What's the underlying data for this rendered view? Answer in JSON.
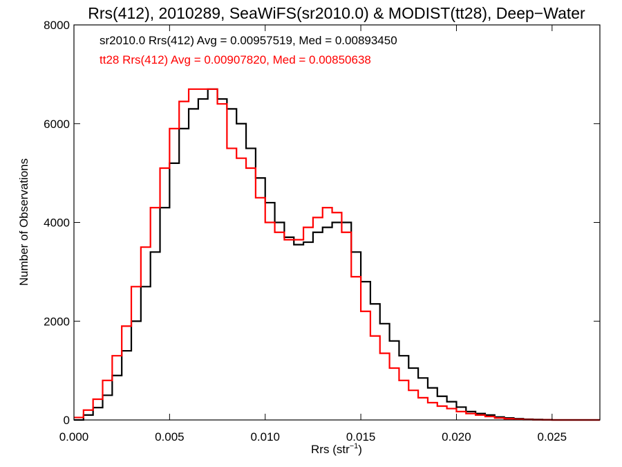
{
  "chart_data": {
    "type": "line",
    "title": "Rrs(412), 2010289, SeaWiFS(sr2010.0) & MODIST(tt28), Deep−Water",
    "xlabel": "Rrs (str",
    "xlabel_sup": "−1",
    "xlabel_close": ")",
    "ylabel": "Number of Observations",
    "xlim": [
      0.0,
      0.0275
    ],
    "ylim": [
      0,
      8000
    ],
    "x_ticks": [
      0.0,
      0.005,
      0.01,
      0.015,
      0.02,
      0.025
    ],
    "x_tick_labels": [
      "0.000",
      "0.005",
      "0.010",
      "0.015",
      "0.020",
      "0.025"
    ],
    "y_ticks": [
      0,
      2000,
      4000,
      6000,
      8000
    ],
    "y_tick_labels": [
      "0",
      "2000",
      "4000",
      "6000",
      "8000"
    ],
    "grid": false,
    "legend_placement": "top-left",
    "annotations": [
      {
        "text": "sr2010.0 Rrs(412) Avg = 0.00957519, Med = 0.00893450",
        "color": "#000000"
      },
      {
        "text": "tt28 Rrs(412) Avg = 0.00907820, Med = 0.00850638",
        "color": "#ff0000"
      }
    ],
    "series": [
      {
        "color": "#000000",
        "step": true,
        "x": [
          0.0,
          0.0005,
          0.001,
          0.0015,
          0.002,
          0.0025,
          0.003,
          0.0035,
          0.004,
          0.0045,
          0.005,
          0.0055,
          0.006,
          0.0065,
          0.007,
          0.0075,
          0.008,
          0.0085,
          0.009,
          0.0095,
          0.01,
          0.0105,
          0.011,
          0.0115,
          0.012,
          0.0125,
          0.013,
          0.0135,
          0.014,
          0.0145,
          0.015,
          0.0155,
          0.016,
          0.0165,
          0.017,
          0.0175,
          0.018,
          0.0185,
          0.019,
          0.0195,
          0.02,
          0.0205,
          0.021,
          0.0215,
          0.022,
          0.0225,
          0.023,
          0.0235,
          0.024,
          0.0245,
          0.025,
          0.026,
          0.027,
          0.0275
        ],
        "y": [
          0,
          100,
          250,
          500,
          900,
          1400,
          2000,
          2700,
          3400,
          4300,
          5200,
          5900,
          6300,
          6500,
          6700,
          6500,
          6300,
          6000,
          5500,
          4900,
          4400,
          4000,
          3700,
          3550,
          3600,
          3800,
          3900,
          4000,
          4000,
          3400,
          2800,
          2350,
          1950,
          1600,
          1300,
          1050,
          850,
          650,
          480,
          370,
          260,
          170,
          130,
          100,
          60,
          40,
          25,
          15,
          10,
          5,
          0,
          0,
          0,
          0
        ]
      },
      {
        "color": "#ff0000",
        "step": true,
        "x": [
          0.0,
          0.0005,
          0.001,
          0.0015,
          0.002,
          0.0025,
          0.003,
          0.0035,
          0.004,
          0.0045,
          0.005,
          0.0055,
          0.006,
          0.0065,
          0.007,
          0.0075,
          0.008,
          0.0085,
          0.009,
          0.0095,
          0.01,
          0.0105,
          0.011,
          0.0115,
          0.012,
          0.0125,
          0.013,
          0.0135,
          0.014,
          0.0145,
          0.015,
          0.0155,
          0.016,
          0.0165,
          0.017,
          0.0175,
          0.018,
          0.0185,
          0.019,
          0.0195,
          0.02,
          0.0205,
          0.021,
          0.0215,
          0.022,
          0.0225,
          0.023,
          0.0235,
          0.024,
          0.0245,
          0.025,
          0.026,
          0.027,
          0.0275
        ],
        "y": [
          50,
          200,
          420,
          800,
          1300,
          1900,
          2700,
          3500,
          4300,
          5100,
          5900,
          6450,
          6700,
          6700,
          6700,
          6400,
          5500,
          5300,
          5100,
          4500,
          4000,
          3800,
          3650,
          3650,
          3900,
          4100,
          4300,
          4200,
          3800,
          2900,
          2200,
          1700,
          1350,
          1050,
          800,
          600,
          450,
          350,
          280,
          230,
          170,
          130,
          100,
          70,
          40,
          25,
          12,
          6,
          3,
          2,
          0,
          0,
          0,
          0
        ]
      }
    ]
  }
}
